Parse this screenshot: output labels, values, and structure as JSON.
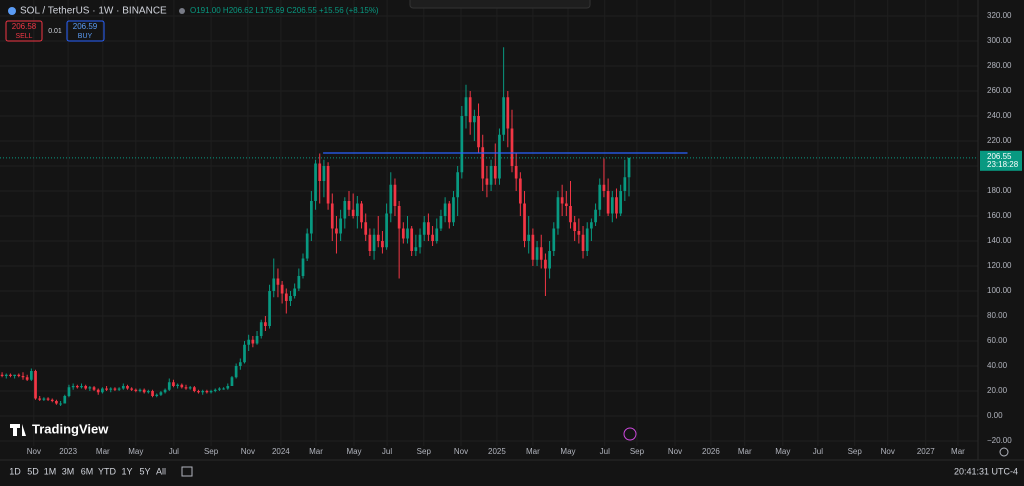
{
  "header": {
    "symbol": "SOL / TetherUS · 1W · BINANCE",
    "ohlc": "O191.00 H206.62 L175.69 C206.55 +15.56 (+8.15%)"
  },
  "trade": {
    "sell_price": "206.58",
    "sell_label": "SELL",
    "quantity": "0.01",
    "buy_price": "206.59",
    "buy_label": "BUY"
  },
  "brand": "TradingView",
  "ranges": [
    "1D",
    "5D",
    "1M",
    "3M",
    "6M",
    "YTD",
    "1Y",
    "5Y",
    "All"
  ],
  "clock": "20:41:31 UTC-4",
  "chart_data": {
    "type": "candlestick",
    "up_color": "#089981",
    "down_color": "#f23645",
    "grid": true,
    "last_price": 206.55,
    "countdown": "23:18:28",
    "last_price_color": "#089981",
    "level_line": {
      "value": 210.4,
      "start": 77.3,
      "end": 164.5,
      "color": "#2962ff"
    },
    "xlim": [
      0,
      234
    ],
    "ylim": [
      -24,
      332.8
    ],
    "xticks": [
      {
        "value": 8.1,
        "label": "Nov"
      },
      {
        "value": 16.3,
        "label": "2023"
      },
      {
        "value": 24.6,
        "label": "Mar"
      },
      {
        "value": 32.5,
        "label": "May"
      },
      {
        "value": 41.6,
        "label": "Jul"
      },
      {
        "value": 50.5,
        "label": "Sep"
      },
      {
        "value": 59.3,
        "label": "Nov"
      },
      {
        "value": 67.2,
        "label": "2024"
      },
      {
        "value": 75.6,
        "label": "Mar"
      },
      {
        "value": 84.7,
        "label": "May"
      },
      {
        "value": 92.6,
        "label": "Jul"
      },
      {
        "value": 101.4,
        "label": "Sep"
      },
      {
        "value": 110.3,
        "label": "Nov"
      },
      {
        "value": 118.9,
        "label": "2025"
      },
      {
        "value": 127.5,
        "label": "Mar"
      },
      {
        "value": 135.9,
        "label": "May"
      },
      {
        "value": 144.7,
        "label": "Jul"
      },
      {
        "value": 152.4,
        "label": "Sep"
      },
      {
        "value": 161.5,
        "label": "Nov"
      },
      {
        "value": 170.1,
        "label": "2026"
      },
      {
        "value": 178.2,
        "label": "Mar"
      },
      {
        "value": 187.3,
        "label": "May"
      },
      {
        "value": 195.7,
        "label": "Jul"
      },
      {
        "value": 204.5,
        "label": "Sep"
      },
      {
        "value": 212.4,
        "label": "Nov"
      },
      {
        "value": 221.5,
        "label": "2027"
      },
      {
        "value": 229.2,
        "label": "Mar"
      }
    ],
    "yticks": [
      {
        "value": 320,
        "label": "320.00"
      },
      {
        "value": 300,
        "label": "300.00"
      },
      {
        "value": 280,
        "label": "280.00"
      },
      {
        "value": 260,
        "label": "260.00"
      },
      {
        "value": 240,
        "label": "240.00"
      },
      {
        "value": 220,
        "label": "220.00"
      },
      {
        "value": 200,
        "label": "200.00"
      },
      {
        "value": 180,
        "label": "180.00"
      },
      {
        "value": 160,
        "label": "160.00"
      },
      {
        "value": 140,
        "label": "140.00"
      },
      {
        "value": 120,
        "label": "120.00"
      },
      {
        "value": 100,
        "label": "100.00"
      },
      {
        "value": 80,
        "label": "80.00"
      },
      {
        "value": 60,
        "label": "60.00"
      },
      {
        "value": 40,
        "label": "40.00"
      },
      {
        "value": 20,
        "label": "20.00"
      },
      {
        "value": 0,
        "label": "0.00"
      },
      {
        "value": -20,
        "label": "−20.00"
      }
    ],
    "candles": [
      [
        33,
        35,
        31,
        32
      ],
      [
        32,
        34,
        30,
        33
      ],
      [
        33,
        34,
        31,
        32
      ],
      [
        32,
        33,
        30,
        33
      ],
      [
        33,
        34,
        31,
        32
      ],
      [
        32,
        35,
        29,
        31
      ],
      [
        31,
        33,
        28,
        29
      ],
      [
        29,
        38,
        28,
        36
      ],
      [
        36,
        37,
        13,
        14
      ],
      [
        14,
        16,
        12,
        13
      ],
      [
        13,
        15,
        12,
        14
      ],
      [
        14,
        15,
        12,
        13
      ],
      [
        13,
        14,
        11,
        12
      ],
      [
        12,
        13,
        9,
        10
      ],
      [
        10,
        12,
        8,
        10
      ],
      [
        10,
        17,
        10,
        16
      ],
      [
        16,
        25,
        15,
        23
      ],
      [
        23,
        26,
        21,
        24
      ],
      [
        24,
        25,
        22,
        23
      ],
      [
        23,
        26,
        22,
        24
      ],
      [
        24,
        25,
        21,
        22
      ],
      [
        22,
        24,
        20,
        23
      ],
      [
        23,
        24,
        20,
        21
      ],
      [
        21,
        22,
        17,
        19
      ],
      [
        19,
        23,
        18,
        22
      ],
      [
        22,
        24,
        20,
        21
      ],
      [
        21,
        23,
        19,
        22
      ],
      [
        22,
        23,
        20,
        21
      ],
      [
        21,
        23,
        20,
        22
      ],
      [
        22,
        26,
        21,
        24
      ],
      [
        24,
        25,
        21,
        22
      ],
      [
        22,
        23,
        20,
        21
      ],
      [
        21,
        22,
        19,
        20
      ],
      [
        20,
        22,
        19,
        21
      ],
      [
        21,
        22,
        18,
        19
      ],
      [
        19,
        21,
        18,
        20
      ],
      [
        20,
        21,
        15,
        16
      ],
      [
        16,
        18,
        15,
        17
      ],
      [
        17,
        20,
        16,
        19
      ],
      [
        19,
        22,
        18,
        21
      ],
      [
        21,
        30,
        20,
        27
      ],
      [
        27,
        29,
        23,
        24
      ],
      [
        24,
        26,
        22,
        25
      ],
      [
        25,
        26,
        22,
        23
      ],
      [
        23,
        25,
        21,
        22
      ],
      [
        22,
        24,
        21,
        23
      ],
      [
        23,
        24,
        19,
        20
      ],
      [
        20,
        21,
        18,
        19
      ],
      [
        19,
        21,
        17,
        20
      ],
      [
        20,
        21,
        18,
        19
      ],
      [
        19,
        21,
        18,
        20
      ],
      [
        20,
        22,
        19,
        21
      ],
      [
        21,
        23,
        20,
        22
      ],
      [
        22,
        23,
        21,
        22
      ],
      [
        22,
        26,
        21,
        24
      ],
      [
        24,
        32,
        24,
        31
      ],
      [
        31,
        42,
        30,
        40
      ],
      [
        40,
        46,
        37,
        43
      ],
      [
        43,
        60,
        42,
        57
      ],
      [
        57,
        65,
        52,
        61
      ],
      [
        61,
        64,
        55,
        58
      ],
      [
        58,
        68,
        57,
        64
      ],
      [
        64,
        77,
        62,
        75
      ],
      [
        75,
        80,
        68,
        72
      ],
      [
        72,
        105,
        70,
        100
      ],
      [
        100,
        126,
        95,
        110
      ],
      [
        110,
        118,
        95,
        105
      ],
      [
        105,
        108,
        90,
        98
      ],
      [
        98,
        102,
        82,
        92
      ],
      [
        92,
        100,
        88,
        96
      ],
      [
        96,
        106,
        94,
        102
      ],
      [
        102,
        118,
        100,
        112
      ],
      [
        112,
        130,
        110,
        126
      ],
      [
        126,
        150,
        124,
        146
      ],
      [
        146,
        180,
        140,
        172
      ],
      [
        172,
        205,
        165,
        202
      ],
      [
        202,
        210,
        170,
        188
      ],
      [
        188,
        205,
        175,
        200
      ],
      [
        200,
        203,
        165,
        170
      ],
      [
        170,
        178,
        140,
        150
      ],
      [
        150,
        160,
        130,
        146
      ],
      [
        146,
        165,
        140,
        158
      ],
      [
        158,
        175,
        150,
        172
      ],
      [
        172,
        180,
        160,
        165
      ],
      [
        165,
        178,
        158,
        160
      ],
      [
        160,
        176,
        150,
        170
      ],
      [
        170,
        172,
        150,
        155
      ],
      [
        155,
        162,
        140,
        145
      ],
      [
        145,
        150,
        128,
        132
      ],
      [
        132,
        150,
        125,
        145
      ],
      [
        145,
        160,
        135,
        140
      ],
      [
        140,
        148,
        130,
        135
      ],
      [
        135,
        170,
        133,
        162
      ],
      [
        162,
        195,
        155,
        185
      ],
      [
        185,
        190,
        160,
        168
      ],
      [
        168,
        172,
        110,
        150
      ],
      [
        150,
        155,
        138,
        142
      ],
      [
        142,
        160,
        138,
        150
      ],
      [
        150,
        152,
        128,
        132
      ],
      [
        132,
        145,
        128,
        135
      ],
      [
        135,
        150,
        130,
        145
      ],
      [
        145,
        160,
        140,
        155
      ],
      [
        155,
        162,
        140,
        145
      ],
      [
        145,
        152,
        136,
        140
      ],
      [
        140,
        158,
        138,
        150
      ],
      [
        150,
        165,
        148,
        160
      ],
      [
        160,
        175,
        155,
        170
      ],
      [
        170,
        172,
        150,
        155
      ],
      [
        155,
        180,
        152,
        175
      ],
      [
        175,
        200,
        160,
        195
      ],
      [
        195,
        248,
        190,
        240
      ],
      [
        240,
        265,
        230,
        255
      ],
      [
        255,
        260,
        225,
        235
      ],
      [
        235,
        245,
        220,
        240
      ],
      [
        240,
        250,
        210,
        215
      ],
      [
        215,
        225,
        180,
        190
      ],
      [
        190,
        200,
        175,
        185
      ],
      [
        185,
        205,
        180,
        200
      ],
      [
        200,
        218,
        185,
        190
      ],
      [
        190,
        230,
        185,
        225
      ],
      [
        225,
        295,
        220,
        255
      ],
      [
        255,
        260,
        215,
        230
      ],
      [
        230,
        245,
        195,
        200
      ],
      [
        200,
        210,
        180,
        190
      ],
      [
        190,
        195,
        160,
        170
      ],
      [
        170,
        180,
        135,
        140
      ],
      [
        140,
        160,
        130,
        145
      ],
      [
        145,
        150,
        120,
        125
      ],
      [
        125,
        140,
        120,
        135
      ],
      [
        135,
        145,
        118,
        125
      ],
      [
        125,
        130,
        96,
        118
      ],
      [
        118,
        140,
        110,
        132
      ],
      [
        132,
        155,
        128,
        150
      ],
      [
        150,
        180,
        145,
        175
      ],
      [
        175,
        185,
        160,
        170
      ],
      [
        170,
        180,
        160,
        168
      ],
      [
        168,
        188,
        150,
        155
      ],
      [
        155,
        160,
        140,
        148
      ],
      [
        148,
        158,
        138,
        145
      ],
      [
        145,
        152,
        126,
        132
      ],
      [
        132,
        155,
        128,
        150
      ],
      [
        150,
        158,
        140,
        155
      ],
      [
        155,
        170,
        152,
        165
      ],
      [
        165,
        190,
        160,
        185
      ],
      [
        185,
        206,
        175,
        180
      ],
      [
        180,
        190,
        160,
        162
      ],
      [
        162,
        180,
        155,
        175
      ],
      [
        175,
        182,
        158,
        162
      ],
      [
        162,
        185,
        160,
        180
      ],
      [
        180,
        205,
        172,
        191
      ],
      [
        191,
        206.62,
        175.69,
        206.55
      ]
    ]
  }
}
